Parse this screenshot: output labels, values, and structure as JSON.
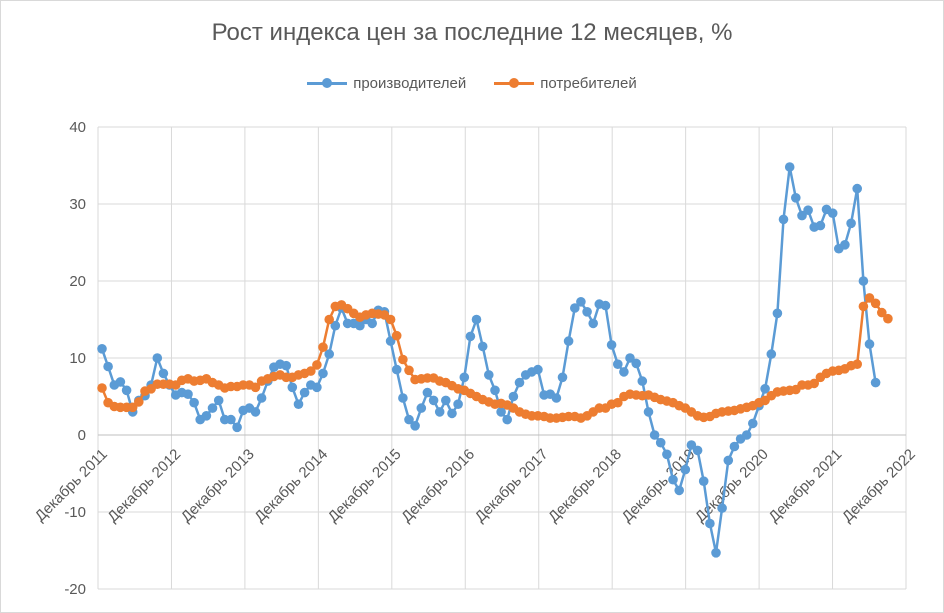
{
  "chart_data": {
    "type": "line",
    "title": "Рост индекса цен за последние 12 месяцев, %",
    "ylim": [
      -20,
      40
    ],
    "y_ticks": [
      -20,
      -10,
      0,
      10,
      20,
      30,
      40
    ],
    "x_tick_labels": [
      "Декабрь 2011",
      "Декабрь 2012",
      "Декабрь 2013",
      "Декабрь 2014",
      "Декабрь 2015",
      "Декабрь 2016",
      "Декабрь 2017",
      "Декабрь 2018",
      "Декабрь 2019",
      "Декабрь 2020",
      "Декабрь 2021",
      "Декабрь 2022"
    ],
    "x_start_label": "Декабрь 2011",
    "grid": "vertical and horizontal",
    "legend_position": "top",
    "series": [
      {
        "name": "производителей",
        "color": "#5B9BD5",
        "values": [
          11.2,
          8.9,
          6.5,
          6.9,
          5.8,
          3.0,
          4.5,
          5.1,
          6.5,
          10.0,
          8.0,
          6.5,
          5.2,
          5.5,
          5.3,
          4.2,
          2.0,
          2.5,
          3.5,
          4.5,
          2.0,
          2.0,
          1.0,
          3.2,
          3.5,
          3.0,
          4.8,
          7.0,
          8.8,
          9.2,
          9.0,
          6.2,
          4.0,
          5.5,
          6.5,
          6.2,
          8.0,
          10.5,
          14.2,
          16.5,
          14.5,
          14.5,
          14.2,
          15.0,
          14.5,
          16.2,
          16.0,
          12.2,
          8.5,
          4.8,
          2.0,
          1.2,
          3.5,
          5.5,
          4.5,
          3.0,
          4.5,
          2.8,
          4.0,
          7.5,
          12.8,
          15.0,
          11.5,
          7.8,
          5.8,
          3.0,
          2.0,
          5.0,
          6.8,
          7.8,
          8.2,
          8.5,
          5.2,
          5.3,
          4.8,
          7.5,
          12.2,
          16.5,
          17.3,
          16.0,
          14.5,
          17.0,
          16.8,
          11.7,
          9.2,
          8.2,
          10.0,
          9.3,
          7.0,
          3.0,
          0.0,
          -1.0,
          -2.5,
          -5.8,
          -7.2,
          -4.5,
          -1.3,
          -2.0,
          -6.0,
          -11.5,
          -15.3,
          -9.5,
          -3.3,
          -1.5,
          -0.5,
          0.0,
          1.5,
          3.8,
          6.0,
          10.5,
          15.8,
          28.0,
          34.8,
          30.8,
          28.5,
          29.2,
          27.0,
          27.2,
          29.3,
          28.8,
          24.2,
          24.7,
          27.5,
          32.0,
          20.0,
          11.8,
          6.8
        ]
      },
      {
        "name": "потребителей",
        "color": "#ED7D31",
        "values": [
          6.1,
          4.2,
          3.7,
          3.6,
          3.6,
          3.6,
          4.3,
          5.7,
          6.0,
          6.6,
          6.6,
          6.6,
          6.5,
          7.1,
          7.3,
          7.0,
          7.1,
          7.3,
          6.8,
          6.5,
          6.1,
          6.3,
          6.3,
          6.5,
          6.5,
          6.2,
          7.0,
          7.3,
          7.6,
          7.8,
          7.5,
          7.5,
          7.8,
          8.0,
          8.3,
          9.1,
          11.4,
          15.0,
          16.7,
          16.9,
          16.4,
          15.8,
          15.3,
          15.6,
          15.8,
          15.7,
          15.6,
          15.0,
          12.9,
          9.8,
          8.4,
          7.2,
          7.3,
          7.4,
          7.4,
          7.0,
          6.8,
          6.4,
          6.0,
          5.8,
          5.4,
          5.0,
          4.6,
          4.3,
          4.0,
          4.1,
          3.9,
          3.5,
          3.0,
          2.7,
          2.5,
          2.5,
          2.4,
          2.2,
          2.2,
          2.3,
          2.4,
          2.4,
          2.2,
          2.5,
          3.0,
          3.5,
          3.5,
          4.0,
          4.2,
          5.0,
          5.3,
          5.2,
          5.1,
          5.2,
          4.9,
          4.6,
          4.4,
          4.2,
          3.8,
          3.5,
          3.0,
          2.5,
          2.3,
          2.4,
          2.8,
          3.0,
          3.1,
          3.2,
          3.4,
          3.6,
          3.8,
          4.2,
          4.5,
          5.1,
          5.6,
          5.7,
          5.8,
          5.9,
          6.5,
          6.5,
          6.7,
          7.5,
          8.0,
          8.3,
          8.4,
          8.6,
          9.0,
          9.2,
          16.7,
          17.8,
          17.1,
          15.9,
          15.1
        ]
      }
    ]
  }
}
